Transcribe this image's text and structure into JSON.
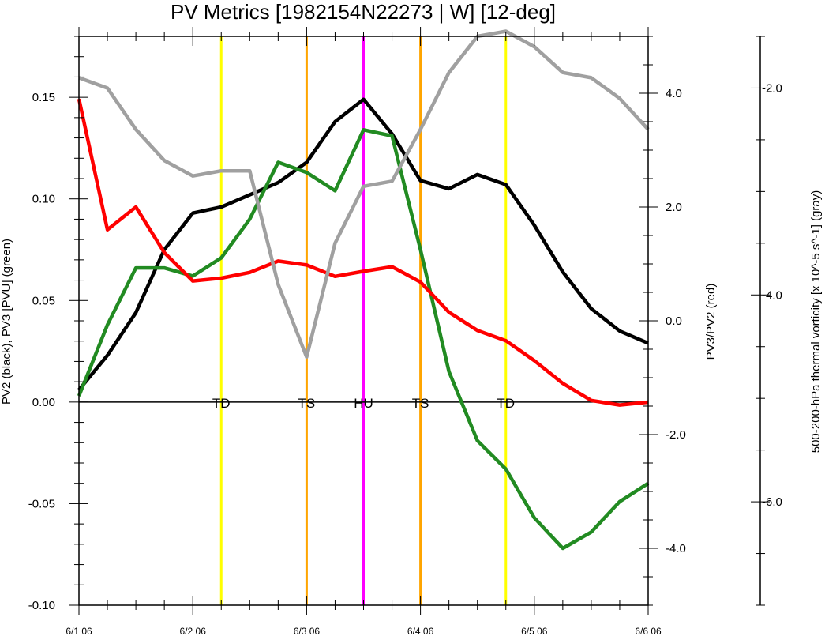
{
  "chart_data": {
    "type": "line",
    "title": "PV Metrics [1982154N22273 | W] [12-deg]",
    "x_tick_labels": [
      "6/1 06",
      "6/2 06",
      "6/3 06",
      "6/4 06",
      "6/5 06",
      "6/6 06"
    ],
    "x_index_range": [
      0,
      20
    ],
    "left_axis": {
      "label": "PV2 (black), PV3 [PVU] (green)",
      "ylim": [
        -0.1,
        0.18
      ],
      "ticks": [
        -0.1,
        -0.05,
        0.0,
        0.05,
        0.1,
        0.15
      ],
      "tick_labels": [
        "-0.10",
        "-0.05",
        "0.00",
        "0.05",
        "0.10",
        "0.15"
      ]
    },
    "right_axis": {
      "label": "PV3/PV2 (red)",
      "ylim": [
        -5.0,
        5.0
      ],
      "ticks": [
        -4.0,
        -2.0,
        0.0,
        2.0,
        4.0
      ],
      "tick_labels": [
        "-4.0",
        "-2.0",
        "0.0",
        "2.0",
        "4.0"
      ]
    },
    "far_right_axis": {
      "label": "500-200-hPa thermal vorticity [x 10^-5 s^-1] (gray)",
      "ylim": [
        -7.0,
        -1.5
      ],
      "ticks": [
        -6.0,
        -4.0,
        -2.0
      ],
      "tick_labels": [
        "-6.0",
        "-4.0",
        "-2.0"
      ]
    },
    "series": [
      {
        "axis": "left",
        "color": "#000000",
        "values": [
          0.006,
          0.023,
          0.044,
          0.075,
          0.093,
          0.096,
          0.102,
          0.108,
          0.118,
          0.138,
          0.149,
          0.132,
          0.109,
          0.105,
          0.112,
          0.107,
          0.087,
          0.064,
          0.046,
          0.035,
          0.029
        ]
      },
      {
        "axis": "left",
        "color": "#228b22",
        "values": [
          0.003,
          0.038,
          0.066,
          0.066,
          0.062,
          0.071,
          0.09,
          0.118,
          0.113,
          0.104,
          0.134,
          0.131,
          0.075,
          0.015,
          -0.019,
          -0.033,
          -0.057,
          -0.072,
          -0.064,
          -0.049,
          -0.04
        ]
      },
      {
        "axis": "right",
        "color": "#ff0000",
        "values": [
          3.9,
          1.6,
          2.0,
          1.2,
          0.7,
          0.75,
          0.85,
          1.05,
          0.98,
          0.78,
          0.87,
          0.95,
          0.68,
          0.15,
          -0.17,
          -0.35,
          -0.7,
          -1.1,
          -1.4,
          -1.48,
          -1.43
        ]
      },
      {
        "axis": "far_right",
        "color": "#a0a0a0",
        "values": [
          -1.9,
          -2.0,
          -2.4,
          -2.7,
          -2.85,
          -2.8,
          -2.8,
          -3.9,
          -4.6,
          -3.5,
          -2.95,
          -2.9,
          -2.4,
          -1.85,
          -1.5,
          -1.45,
          -1.6,
          -1.85,
          -1.9,
          -2.1,
          -2.4
        ]
      }
    ],
    "zero_line": 0.0,
    "stage_lines": [
      {
        "x_index": 5,
        "label": "TD",
        "color": "#ffff00"
      },
      {
        "x_index": 8,
        "label": "TS",
        "color": "#ffa500"
      },
      {
        "x_index": 10,
        "label": "HU",
        "color": "#ff00ff"
      },
      {
        "x_index": 12,
        "label": "TS",
        "color": "#ffa500"
      },
      {
        "x_index": 15,
        "label": "TD",
        "color": "#ffff00"
      }
    ],
    "grid": false,
    "legend": "none"
  }
}
